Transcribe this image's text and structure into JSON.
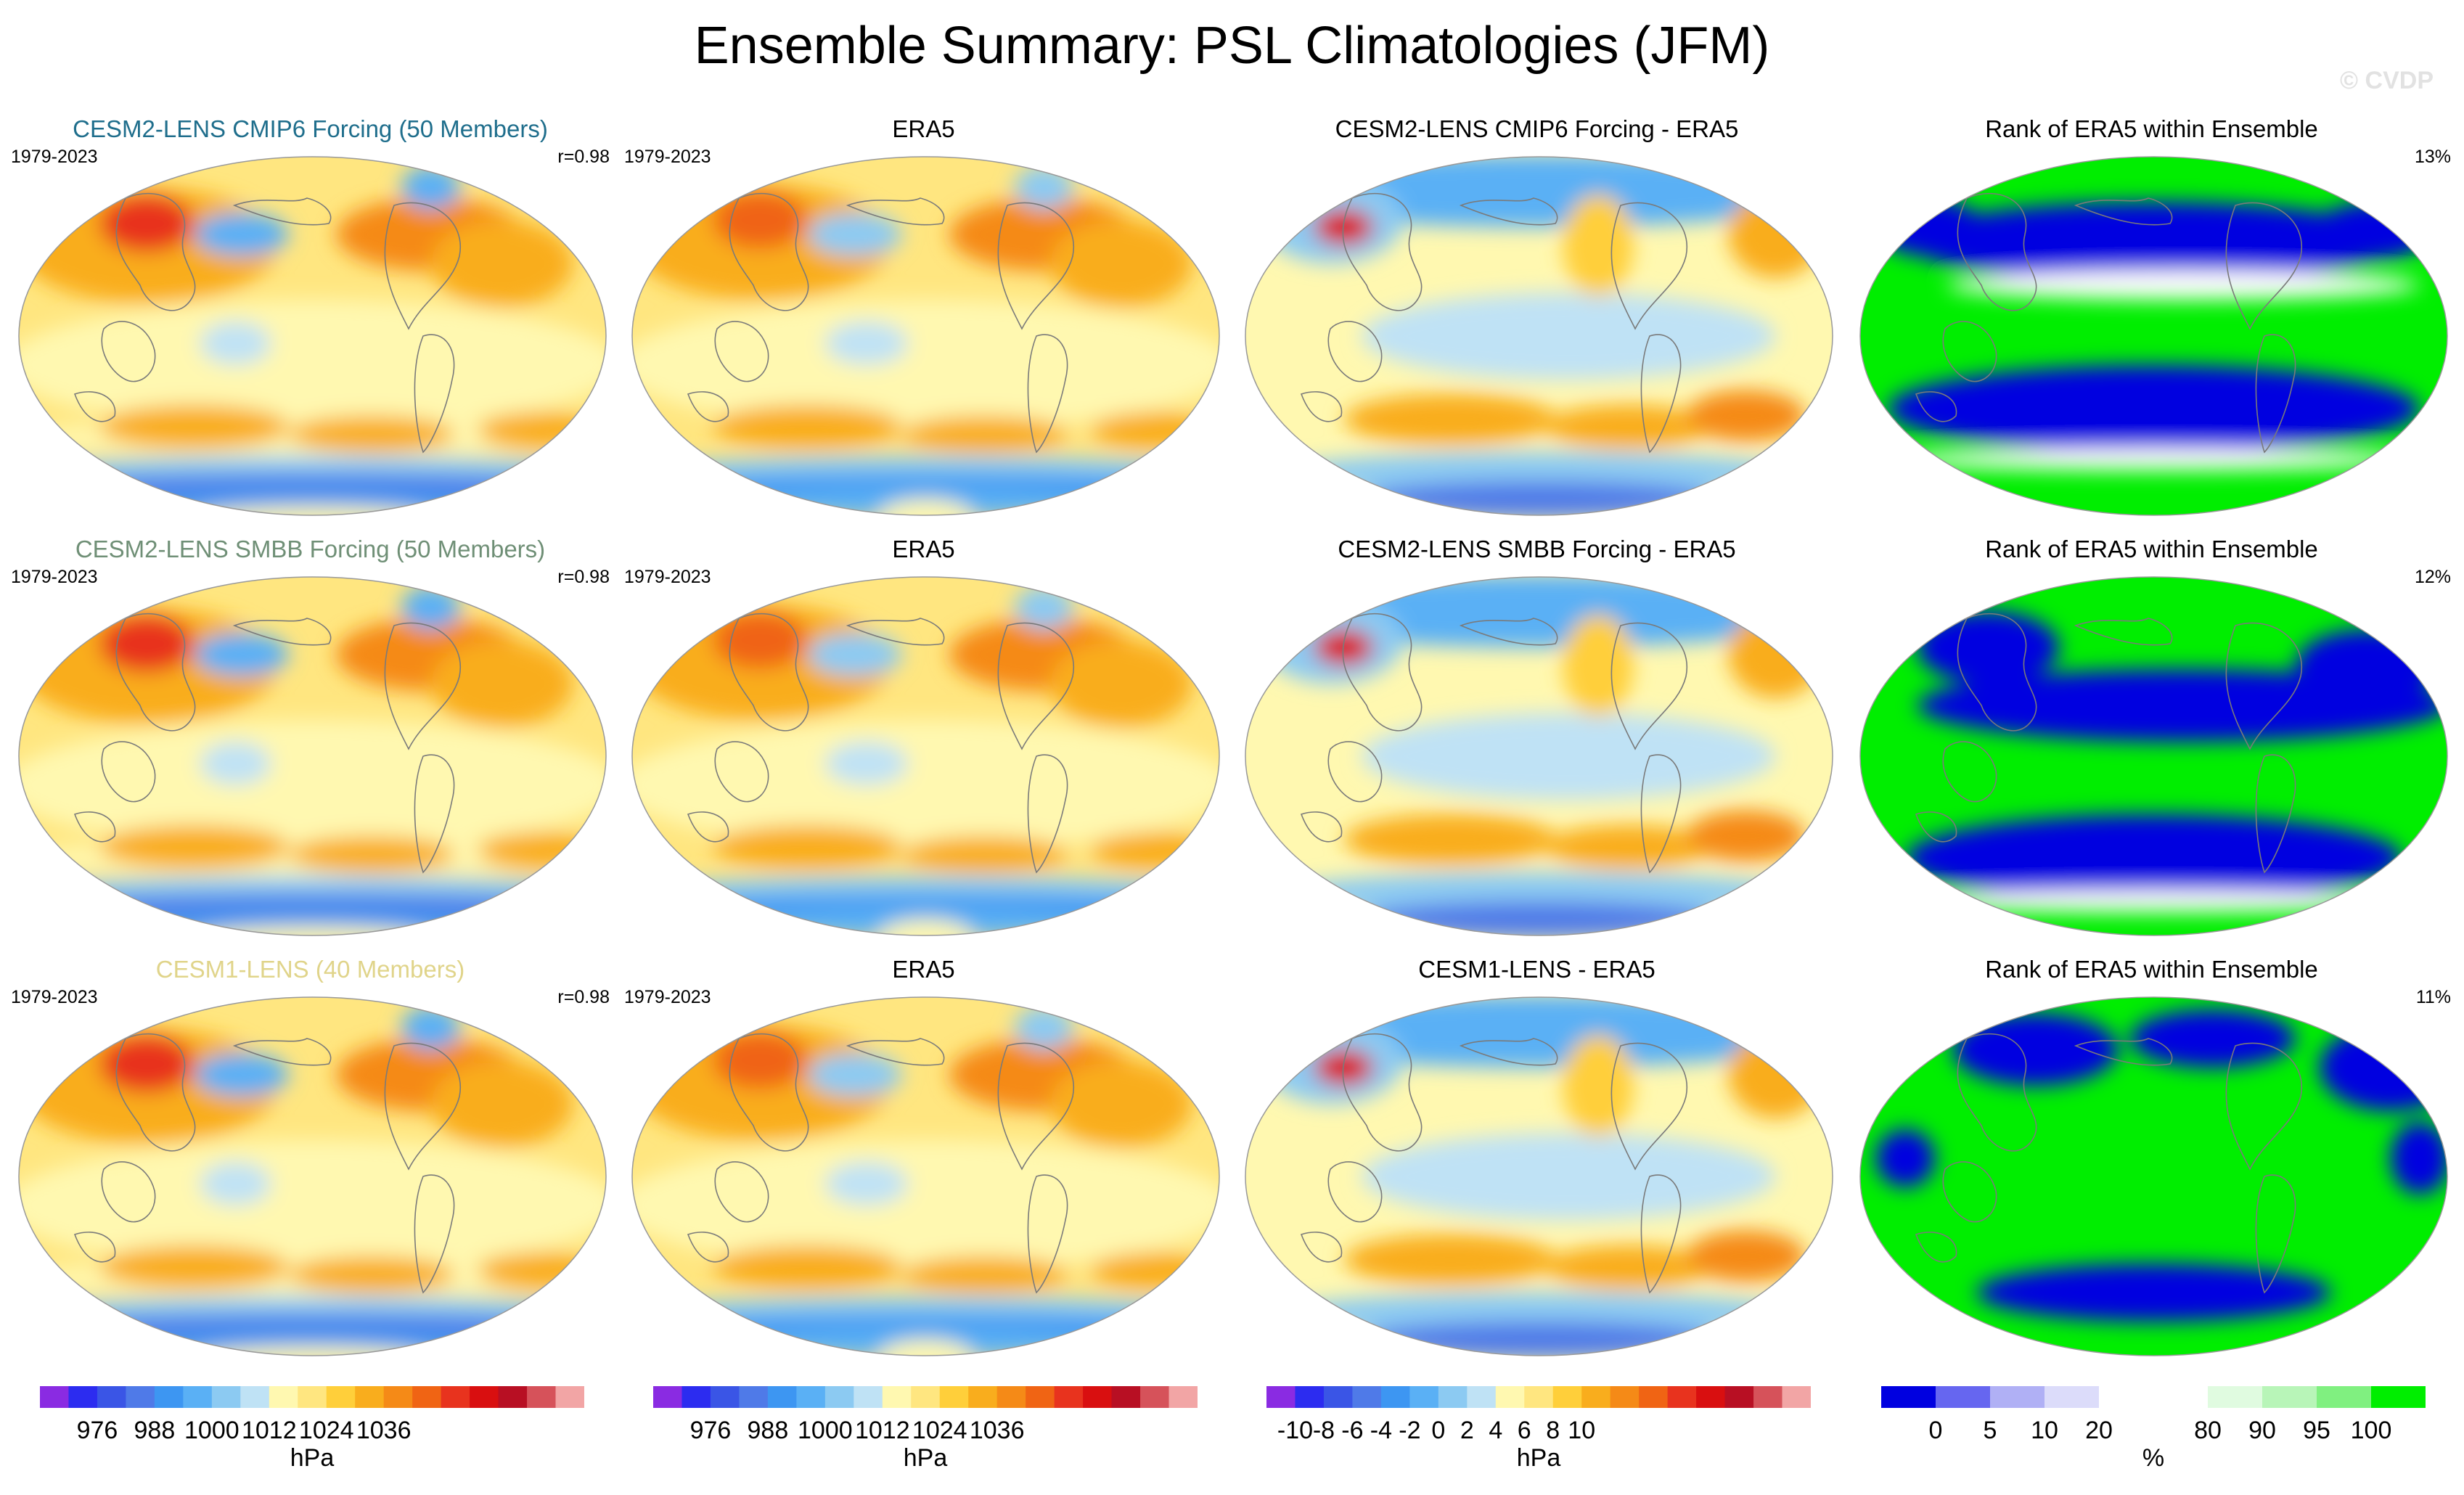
{
  "title": "Ensemble Summary: PSL Climatologies (JFM)",
  "copyright": "© CVDP",
  "chart_data": {
    "type": "map-panels",
    "rows": [
      {
        "model_title": "CESM2-LENS CMIP6 Forcing (50 Members)",
        "model_title_color": "#1f6e8c",
        "model_years": "1979-2023",
        "pattern_corr": "r=0.98",
        "obs_title": "ERA5",
        "obs_years": "1979-2023",
        "diff_title": "CESM2-LENS CMIP6 Forcing - ERA5",
        "rank_title": "Rank of ERA5 within Ensemble",
        "rank_pct": "13%"
      },
      {
        "model_title": "CESM2-LENS SMBB Forcing (50 Members)",
        "model_title_color": "#6f8f76",
        "model_years": "1979-2023",
        "pattern_corr": "r=0.98",
        "obs_title": "ERA5",
        "obs_years": "1979-2023",
        "diff_title": "CESM2-LENS SMBB Forcing - ERA5",
        "rank_title": "Rank of ERA5 within Ensemble",
        "rank_pct": "12%"
      },
      {
        "model_title": "CESM1-LENS (40 Members)",
        "model_title_color": "#e0d48a",
        "model_years": "1979-2023",
        "pattern_corr": "r=0.98",
        "obs_title": "ERA5",
        "obs_years": "1979-2023",
        "diff_title": "CESM1-LENS - ERA5",
        "rank_title": "Rank of ERA5 within Ensemble",
        "rank_pct": "11%"
      }
    ],
    "colorbars": {
      "psl": {
        "unit": "hPa",
        "tick_labels": [
          "976",
          "988",
          "1000",
          "1012",
          "1024",
          "1036"
        ],
        "colors": [
          "#8a2be2",
          "#2c2cf0",
          "#3a55e6",
          "#4f7ae8",
          "#3d96f2",
          "#5ab0f5",
          "#8ccaf2",
          "#bfe2f5",
          "#fff8b0",
          "#ffe680",
          "#ffcf3a",
          "#f9ad1d",
          "#f58a17",
          "#f06414",
          "#e8331e",
          "#d90f10",
          "#b80f23",
          "#d6525a",
          "#f2a5a5"
        ]
      },
      "diff": {
        "unit": "hPa",
        "tick_labels": [
          "-10",
          "-8",
          "-6",
          "-4",
          "-2",
          "0",
          "2",
          "4",
          "6",
          "8",
          "10"
        ],
        "colors": [
          "#8a2be2",
          "#2c2cf0",
          "#3a55e6",
          "#4f7ae8",
          "#3d96f2",
          "#5ab0f5",
          "#8ccaf2",
          "#bfe2f5",
          "#fff8b0",
          "#ffe680",
          "#ffcf3a",
          "#f9ad1d",
          "#f58a17",
          "#f06414",
          "#e8331e",
          "#d90f10",
          "#b80f23",
          "#d6525a",
          "#f2a5a5"
        ]
      },
      "rank": {
        "unit": "%",
        "tick_labels": [
          "0",
          "5",
          "10",
          "20",
          "80",
          "90",
          "95",
          "100"
        ],
        "colors": [
          "#0000e0",
          "#6666f0",
          "#b0b0f5",
          "#dcdcfa",
          "#ffffff",
          "#ffffff",
          "#e0fbe0",
          "#b8f5b8",
          "#80f080",
          "#00ee00"
        ]
      }
    }
  }
}
